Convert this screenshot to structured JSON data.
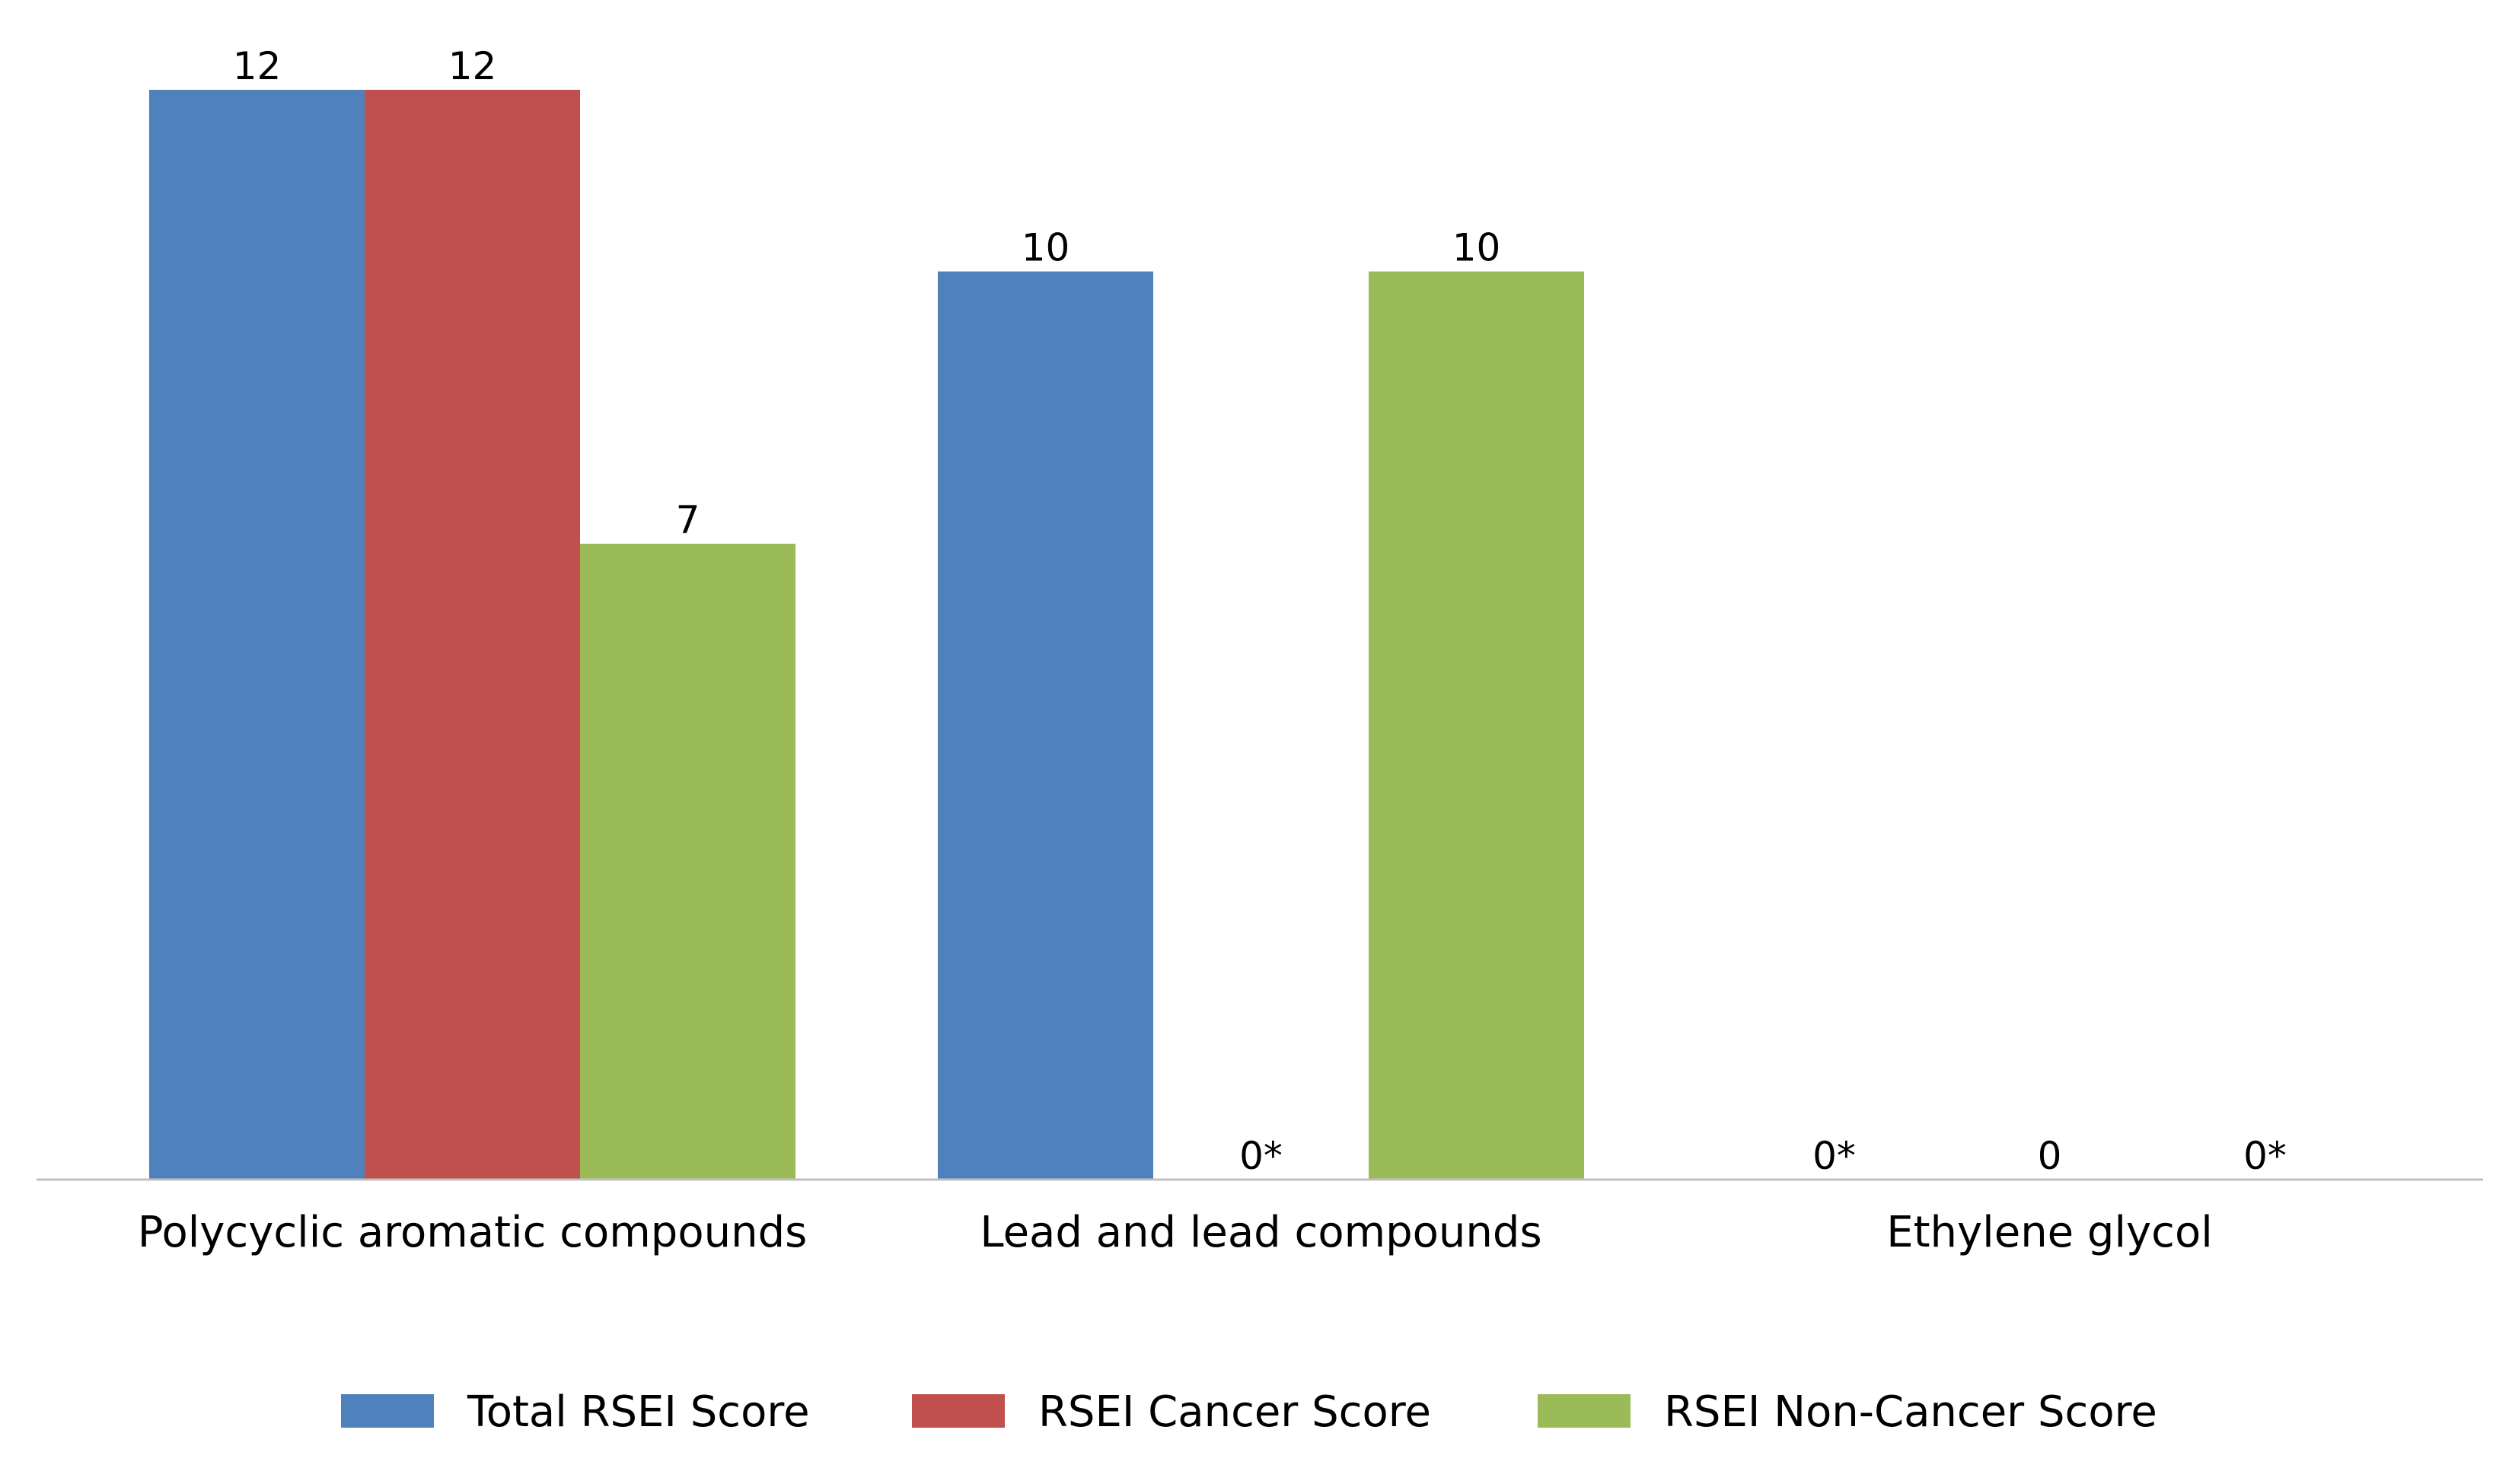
{
  "chart_data": {
    "type": "bar",
    "categories": [
      "Polycyclic aromatic compounds",
      "Lead and lead compounds",
      "Ethylene glycol"
    ],
    "series": [
      {
        "name": "Total RSEI Score",
        "color": "#4F81BD",
        "values": [
          12,
          10,
          0
        ],
        "labels": [
          "12",
          "10",
          "0*"
        ]
      },
      {
        "name": "RSEI Cancer Score",
        "color": "#C0504D",
        "values": [
          12,
          0,
          0
        ],
        "labels": [
          "12",
          "0*",
          "0"
        ]
      },
      {
        "name": "RSEI Non-Cancer Score",
        "color": "#9BBB59",
        "values": [
          7,
          10,
          0
        ],
        "labels": [
          "7",
          "10",
          "0*"
        ]
      }
    ],
    "ylim": [
      0,
      12
    ],
    "grid": false,
    "legend_position": "bottom"
  }
}
